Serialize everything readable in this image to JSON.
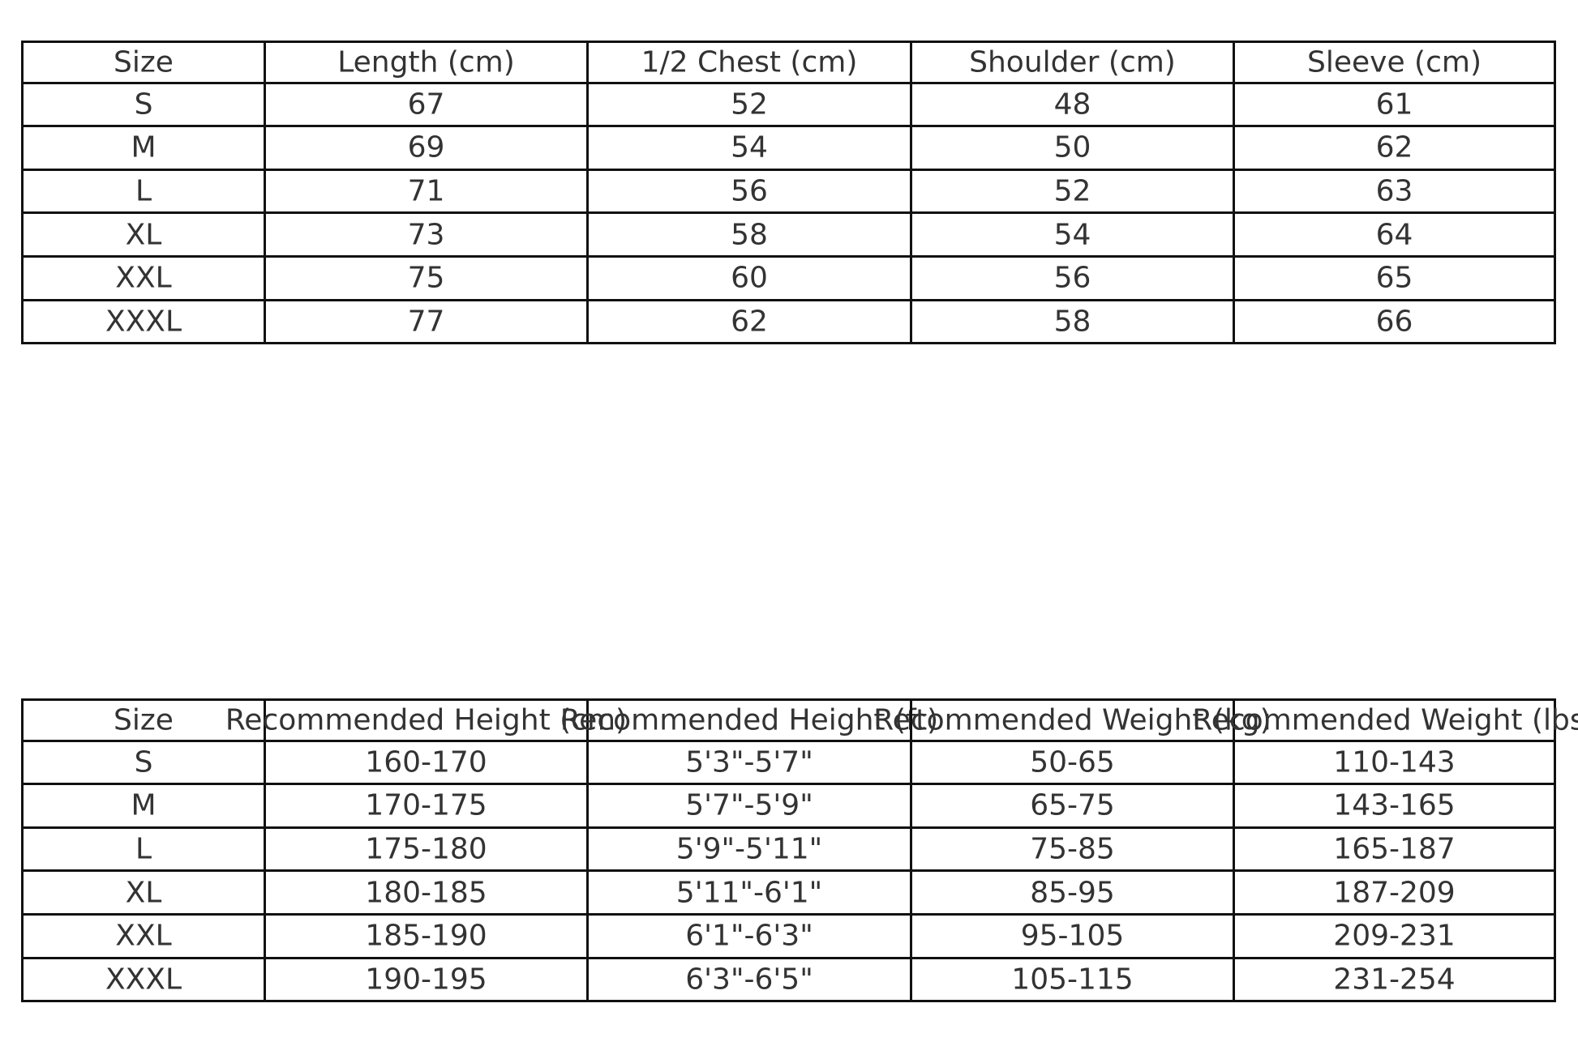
{
  "measurements_table": {
    "headers": [
      "Size",
      "Length (cm)",
      "1/2 Chest (cm)",
      "Shoulder (cm)",
      "Sleeve (cm)"
    ],
    "rows": [
      [
        "S",
        "67",
        "52",
        "48",
        "61"
      ],
      [
        "M",
        "69",
        "54",
        "50",
        "62"
      ],
      [
        "L",
        "71",
        "56",
        "52",
        "63"
      ],
      [
        "XL",
        "73",
        "58",
        "54",
        "64"
      ],
      [
        "XXL",
        "75",
        "60",
        "56",
        "65"
      ],
      [
        "XXXL",
        "77",
        "62",
        "58",
        "66"
      ]
    ]
  },
  "recommendation_table": {
    "headers": [
      "Size",
      "Recommended Height (cm)",
      "Recommended Height (ft)",
      "Recommended Weight (kg)",
      "Recommended Weight (lbs)"
    ],
    "rows": [
      [
        "S",
        "160-170",
        "5'3\"-5'7\"",
        "50-65",
        "110-143"
      ],
      [
        "M",
        "170-175",
        "5'7\"-5'9\"",
        "65-75",
        "143-165"
      ],
      [
        "L",
        "175-180",
        "5'9\"-5'11\"",
        "75-85",
        "165-187"
      ],
      [
        "XL",
        "180-185",
        "5'11\"-6'1\"",
        "85-95",
        "187-209"
      ],
      [
        "XXL",
        "185-190",
        "6'1\"-6'3\"",
        "95-105",
        "209-231"
      ],
      [
        "XXXL",
        "190-195",
        "6'3\"-6'5\"",
        "105-115",
        "231-254"
      ]
    ]
  }
}
